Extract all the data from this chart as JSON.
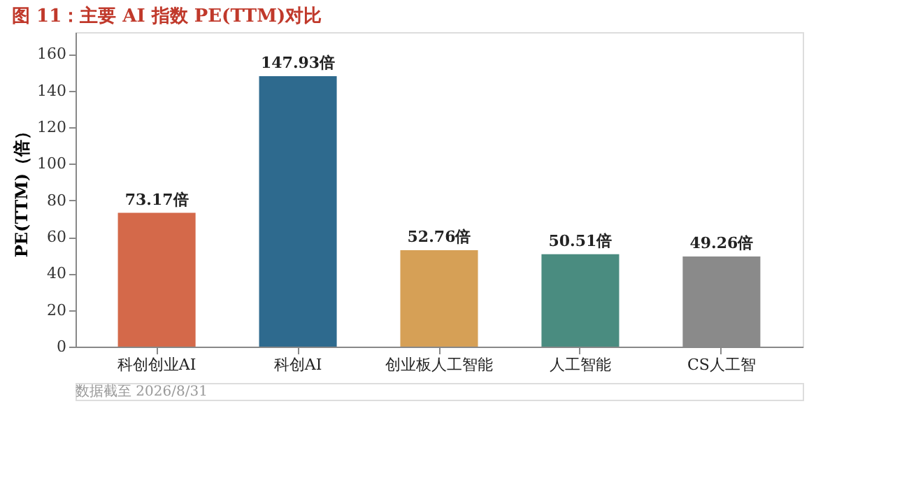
{
  "chart_data": {
    "type": "bar",
    "title": "图 11：主要 AI 指数 PE(TTM)对比",
    "categories": [
      "科创创业AI",
      "科创AI",
      "创业板人工智能",
      "人工智能",
      "CS人工智"
    ],
    "values": [
      73.17,
      147.93,
      52.76,
      50.51,
      49.26
    ],
    "colors": [
      "#d4694a",
      "#2e6a8e",
      "#d6a056",
      "#4a8c80",
      "#8a8a8a"
    ],
    "value_labels": [
      "73.17倍",
      "147.93倍",
      "52.76倍",
      "50.51倍",
      "49.26倍"
    ],
    "ylabel": "PE(TTM)（倍）",
    "ylim": [
      0,
      172
    ],
    "yticks": [
      0,
      20,
      40,
      60,
      80,
      100,
      120,
      140,
      160
    ],
    "grid": false,
    "annotations": [
      "数据截至 2026/8/31"
    ]
  }
}
